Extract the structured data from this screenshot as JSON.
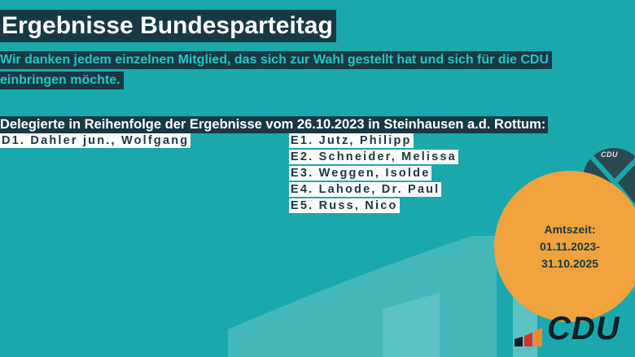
{
  "header": {
    "title": "Ergebnisse Bundesparteitag",
    "subtitle_line1": "Wir danken jedem einzelnen Mitglied, das sich zur Wahl gestellt hat und sich für die CDU",
    "subtitle_line2": "einbringen möchte."
  },
  "delegates": {
    "heading": "Delegierte in Reihenfolge der Ergebnisse vom 26.10.2023 in Steinhausen a.d. Rottum:",
    "main": [
      {
        "label": "D1.  Dahler jun., Wolfgang"
      }
    ],
    "substitutes": [
      {
        "label": "E1. Jutz, Philipp"
      },
      {
        "label": "E2. Schneider, Melissa"
      },
      {
        "label": "E3. Weggen, Isolde"
      },
      {
        "label": "E4. Lahode, Dr. Paul"
      },
      {
        "label": "E5. Russ, Nico"
      }
    ]
  },
  "term": {
    "label": "Amtszeit:",
    "start": "01.11.2023-",
    "end": "31.10.2025"
  },
  "badge": {
    "text": "CDU"
  },
  "logo": {
    "text": "CDU"
  },
  "colors": {
    "background": "#1ba8ad",
    "dark_box": "#173943",
    "accent_text": "#1cc8c8",
    "circle": "#f0a33c",
    "logo_black": "#0d1f26",
    "logo_red": "#d7312b",
    "logo_orange": "#f08a2c"
  }
}
